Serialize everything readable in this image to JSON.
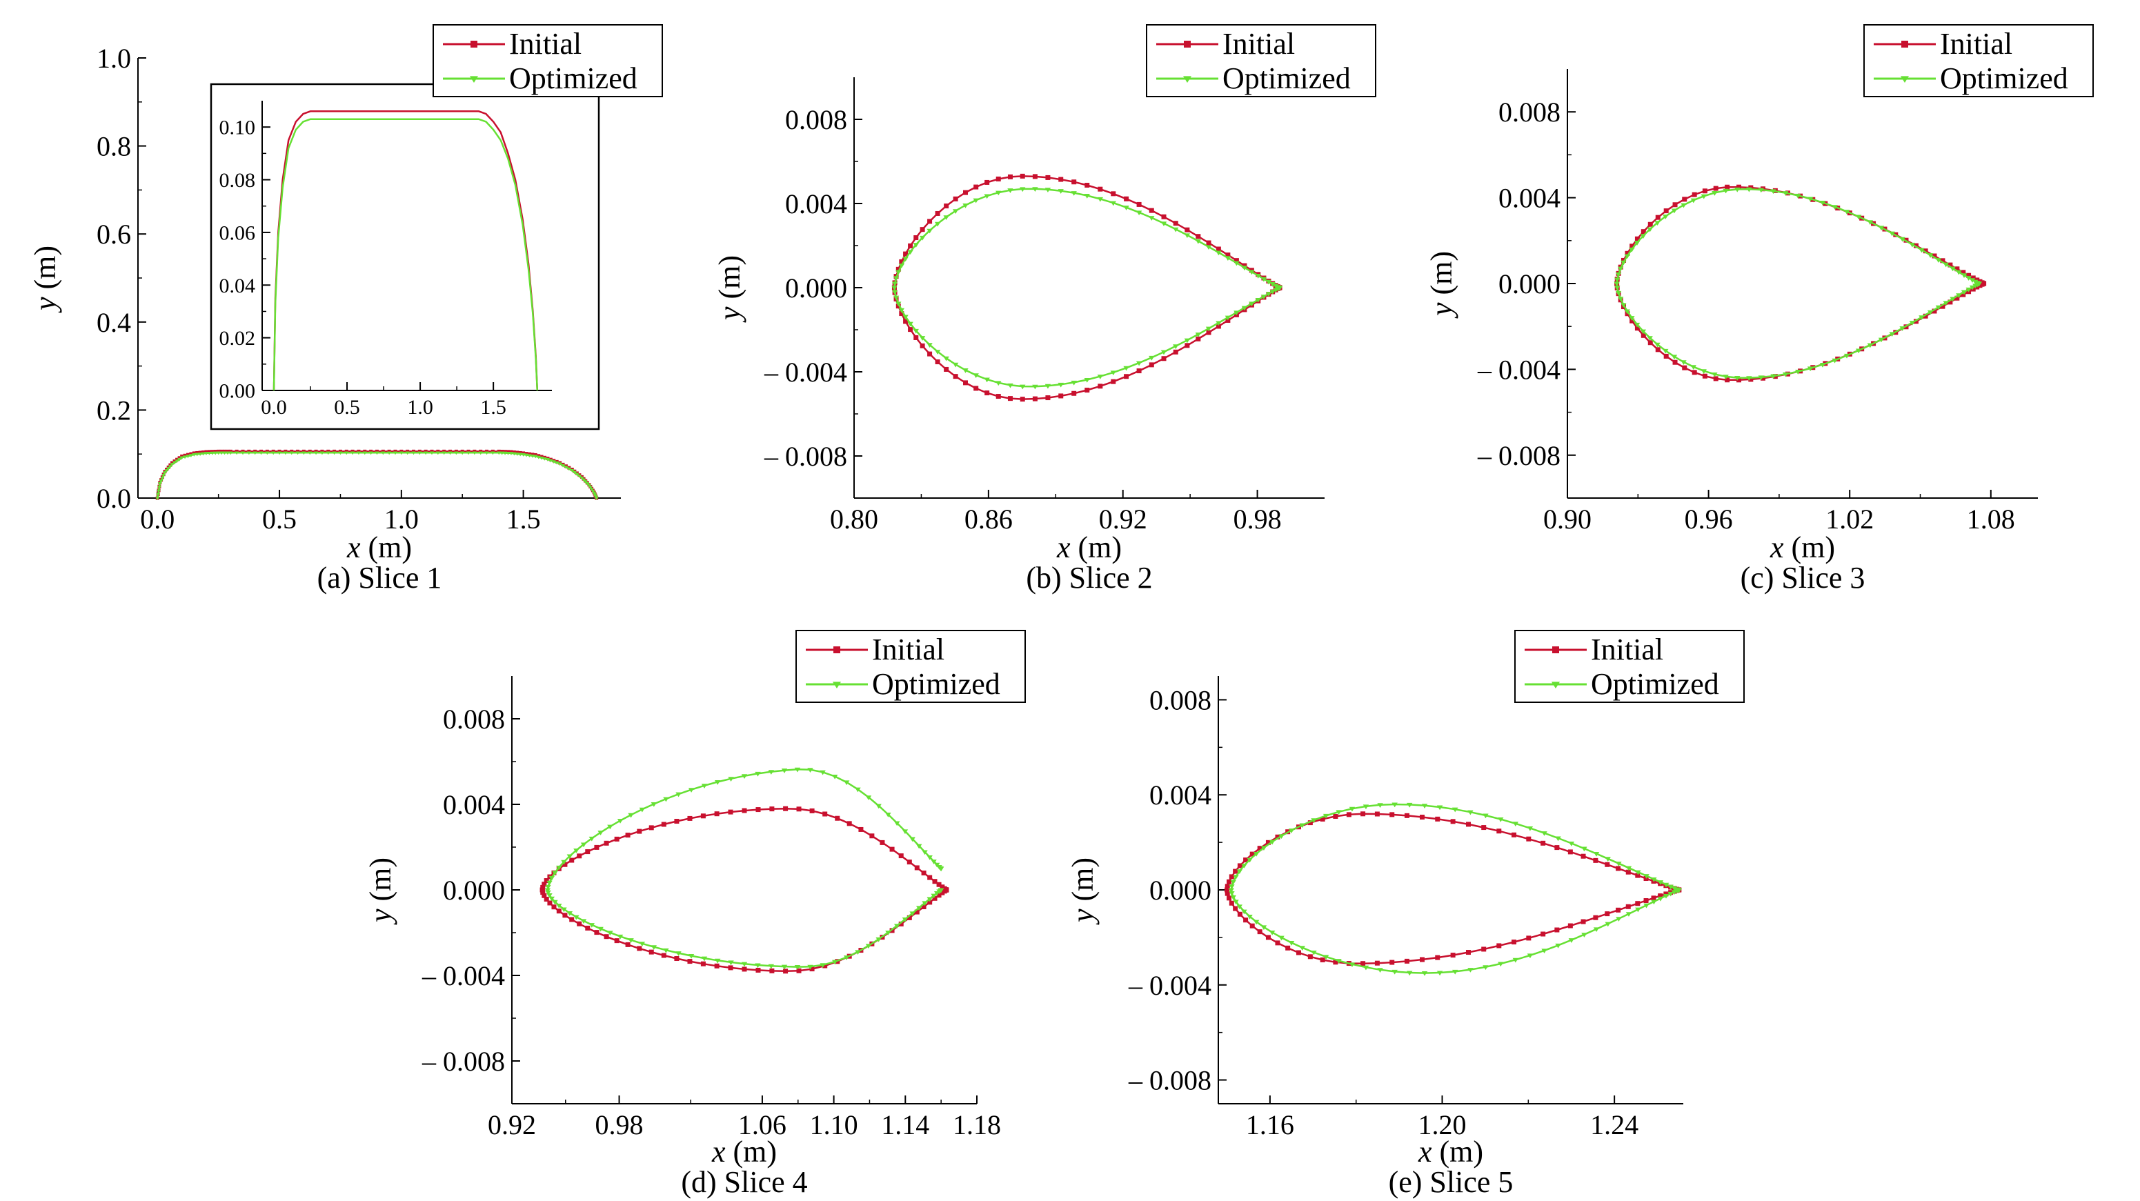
{
  "colors": {
    "initial": "#c8102e",
    "optimized": "#66e033",
    "axis": "#000000"
  },
  "legend": {
    "initial": "Initial",
    "optimized": "Optimized"
  },
  "chart_data": [
    {
      "id": "a",
      "type": "line",
      "caption": "(a) Slice 1",
      "xlabel": "x (m)",
      "ylabel": "y (m)",
      "xlim": [
        -0.08,
        1.9
      ],
      "ylim": [
        0.0,
        1.0
      ],
      "xticks": [
        0.0,
        0.5,
        1.0,
        1.5
      ],
      "xtick_labels": [
        "0.0",
        "0.5",
        "1.0",
        "1.5"
      ],
      "yticks": [
        0.0,
        0.2,
        0.4,
        0.6,
        0.8,
        1.0
      ],
      "ytick_labels": [
        "0.0",
        "0.2",
        "0.4",
        "0.6",
        "0.8",
        "1.0"
      ],
      "legend_position": "top-right",
      "series": [
        {
          "name": "Initial",
          "marker": "square",
          "x": [
            0.0,
            0.01,
            0.03,
            0.06,
            0.1,
            0.15,
            0.2,
            0.25,
            0.3,
            0.4,
            0.5,
            0.6,
            0.7,
            0.8,
            0.9,
            1.0,
            1.1,
            1.2,
            1.3,
            1.4,
            1.45,
            1.5,
            1.55,
            1.6,
            1.65,
            1.7,
            1.74,
            1.77,
            1.79,
            1.8
          ],
          "y": [
            0.0,
            0.035,
            0.06,
            0.08,
            0.095,
            0.102,
            0.105,
            0.106,
            0.106,
            0.106,
            0.106,
            0.106,
            0.106,
            0.106,
            0.106,
            0.106,
            0.106,
            0.106,
            0.106,
            0.106,
            0.105,
            0.102,
            0.098,
            0.09,
            0.08,
            0.065,
            0.048,
            0.03,
            0.013,
            0.0
          ]
        },
        {
          "name": "Optimized",
          "marker": "triangle-down",
          "x": [
            0.0,
            0.01,
            0.03,
            0.06,
            0.1,
            0.15,
            0.2,
            0.25,
            0.3,
            0.4,
            0.5,
            0.6,
            0.7,
            0.8,
            0.9,
            1.0,
            1.1,
            1.2,
            1.3,
            1.4,
            1.45,
            1.5,
            1.55,
            1.6,
            1.65,
            1.7,
            1.74,
            1.77,
            1.79,
            1.8
          ],
          "y": [
            0.0,
            0.033,
            0.058,
            0.077,
            0.092,
            0.099,
            0.102,
            0.103,
            0.103,
            0.103,
            0.103,
            0.103,
            0.103,
            0.103,
            0.103,
            0.103,
            0.103,
            0.103,
            0.103,
            0.103,
            0.102,
            0.099,
            0.095,
            0.088,
            0.078,
            0.063,
            0.046,
            0.029,
            0.012,
            0.0
          ]
        }
      ],
      "inset": {
        "xlim": [
          -0.08,
          1.9
        ],
        "ylim": [
          0.0,
          0.11
        ],
        "xticks": [
          0.0,
          0.5,
          1.0,
          1.5
        ],
        "xtick_labels": [
          "0.0",
          "0.5",
          "1.0",
          "1.5"
        ],
        "yticks": [
          0.0,
          0.02,
          0.04,
          0.06,
          0.08,
          0.1
        ],
        "ytick_labels": [
          "0.00",
          "0.02",
          "0.04",
          "0.06",
          "0.08",
          "0.10"
        ]
      }
    },
    {
      "id": "b",
      "type": "line",
      "caption": "(b) Slice 2",
      "xlabel": "x (m)",
      "ylabel": "y (m)",
      "xlim": [
        0.8,
        1.01
      ],
      "ylim": [
        -0.01,
        0.01
      ],
      "xticks": [
        0.8,
        0.86,
        0.92,
        0.98
      ],
      "xtick_labels": [
        "0.80",
        "0.86",
        "0.92",
        "0.98"
      ],
      "yticks": [
        -0.008,
        -0.004,
        0.0,
        0.004,
        0.008
      ],
      "ytick_labels": [
        "– 0.008",
        "– 0.004",
        "0.000",
        "0.004",
        "0.008"
      ],
      "legend_position": "top-right",
      "series": [
        {
          "name": "Initial",
          "marker": "square",
          "shape": {
            "x_le": 0.818,
            "x_te": 0.99,
            "t_max": 0.0053,
            "x_max": 0.875,
            "te_gap": 0.0
          }
        },
        {
          "name": "Optimized",
          "marker": "triangle-down",
          "shape": {
            "x_le": 0.818,
            "x_te": 0.99,
            "t_max": 0.0047,
            "x_max": 0.878,
            "te_gap": 0.0
          }
        }
      ]
    },
    {
      "id": "c",
      "type": "line",
      "caption": "(c) Slice 3",
      "xlabel": "x (m)",
      "ylabel": "y (m)",
      "xlim": [
        0.9,
        1.1
      ],
      "ylim": [
        -0.01,
        0.01
      ],
      "xticks": [
        0.9,
        0.96,
        1.02,
        1.08
      ],
      "xtick_labels": [
        "0.90",
        "0.96",
        "1.02",
        "1.08"
      ],
      "yticks": [
        -0.008,
        -0.004,
        0.0,
        0.004,
        0.008
      ],
      "ytick_labels": [
        "– 0.008",
        "– 0.004",
        "0.000",
        "0.004",
        "0.008"
      ],
      "legend_position": "top-right",
      "series": [
        {
          "name": "Initial",
          "marker": "square",
          "shape": {
            "x_le": 0.921,
            "x_te": 1.077,
            "t_max": 0.0045,
            "x_max": 0.97,
            "te_gap": 0.0
          }
        },
        {
          "name": "Optimized",
          "marker": "triangle-down",
          "shape": {
            "x_le": 0.921,
            "x_te": 1.075,
            "t_max": 0.0044,
            "x_max": 0.975,
            "te_gap": 0.0
          }
        }
      ]
    },
    {
      "id": "d",
      "type": "line",
      "caption": "(d) Slice 4",
      "xlabel": "x (m)",
      "ylabel": "y (m)",
      "xlim": [
        0.92,
        1.18
      ],
      "ylim": [
        -0.01,
        0.01
      ],
      "xticks": [
        0.92,
        0.98,
        1.06,
        1.1,
        1.14,
        1.18
      ],
      "xtick_labels": [
        "0.92",
        "0.98",
        "1.06",
        "1.10",
        "1.14",
        "1.18"
      ],
      "yticks": [
        -0.008,
        -0.004,
        0.0,
        0.004,
        0.008
      ],
      "ytick_labels": [
        "– 0.008",
        "– 0.004",
        "0.000",
        "0.004",
        "0.008"
      ],
      "legend_position": "top-right",
      "series": [
        {
          "name": "Initial",
          "marker": "square",
          "shape": {
            "x_le": 0.937,
            "x_te": 1.163,
            "t_max": 0.0038,
            "x_max": 1.075,
            "te_gap": 0.0
          }
        },
        {
          "name": "Optimized",
          "marker": "triangle-down",
          "upper": {
            "x_le": 0.94,
            "x_te": 1.16,
            "t_max": 0.005,
            "x_max": 1.08,
            "y_te": 0.001
          },
          "lower": {
            "t_max": 0.0036,
            "x_max": 1.083
          }
        }
      ]
    },
    {
      "id": "e",
      "type": "line",
      "caption": "(e) Slice 5",
      "xlabel": "x (m)",
      "ylabel": "y (m)",
      "xlim": [
        1.148,
        1.256
      ],
      "ylim": [
        -0.009,
        0.009
      ],
      "xticks": [
        1.16,
        1.2,
        1.24
      ],
      "xtick_labels": [
        "1.16",
        "1.20",
        "1.24"
      ],
      "yticks": [
        -0.008,
        -0.004,
        0.0,
        0.004,
        0.008
      ],
      "ytick_labels": [
        "– 0.008",
        "– 0.004",
        "0.000",
        "0.004",
        "0.008"
      ],
      "legend_position": "top-right",
      "series": [
        {
          "name": "Initial",
          "marker": "square",
          "upper": {
            "x_le": 1.15,
            "x_te": 1.255,
            "t_max": 0.0032,
            "x_max": 1.182
          },
          "lower": {
            "t_max": 0.0031,
            "x_max": 1.18
          }
        },
        {
          "name": "Optimized",
          "marker": "triangle-down",
          "upper": {
            "x_le": 1.151,
            "x_te": 1.255,
            "t_max": 0.0036,
            "x_max": 1.189
          },
          "lower": {
            "t_max": 0.0035,
            "x_max": 1.196
          }
        }
      ]
    }
  ]
}
